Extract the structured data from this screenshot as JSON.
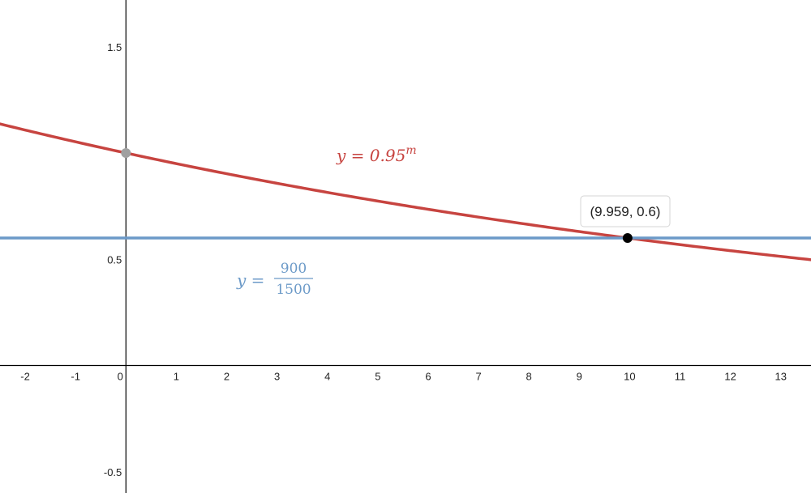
{
  "chart_data": {
    "type": "line",
    "xlim": [
      -2.5,
      13.6
    ],
    "ylim": [
      -0.6,
      1.72
    ],
    "x_ticks": [
      -2,
      -1,
      0,
      1,
      2,
      3,
      4,
      5,
      6,
      7,
      8,
      9,
      10,
      11,
      12,
      13
    ],
    "x_tick_labels": [
      "-2",
      "-1",
      "0",
      "1",
      "2",
      "3",
      "4",
      "5",
      "6",
      "7",
      "8",
      "9",
      "10",
      "11",
      "12",
      "13"
    ],
    "y_ticks": [
      1.5,
      0.5,
      -0.5
    ],
    "y_tick_labels": [
      "1.5",
      "0.5",
      "-0.5"
    ],
    "grid": false,
    "series": [
      {
        "function": "exponential",
        "base": 0.95,
        "color": "#c74440",
        "label": {
          "lhs": "y = 0.95",
          "exponent": "m"
        }
      },
      {
        "function": "constant",
        "value": 0.6,
        "color": "#6c9ac8",
        "label": {
          "lhs": "y =",
          "numerator": "900",
          "denominator": "1500"
        }
      }
    ],
    "points": [
      {
        "x": 0,
        "y": 1,
        "color": "#a0a0a0"
      },
      {
        "x": 9.959,
        "y": 0.6,
        "color": "#000000",
        "label": "(9.959, 0.6)"
      }
    ]
  }
}
